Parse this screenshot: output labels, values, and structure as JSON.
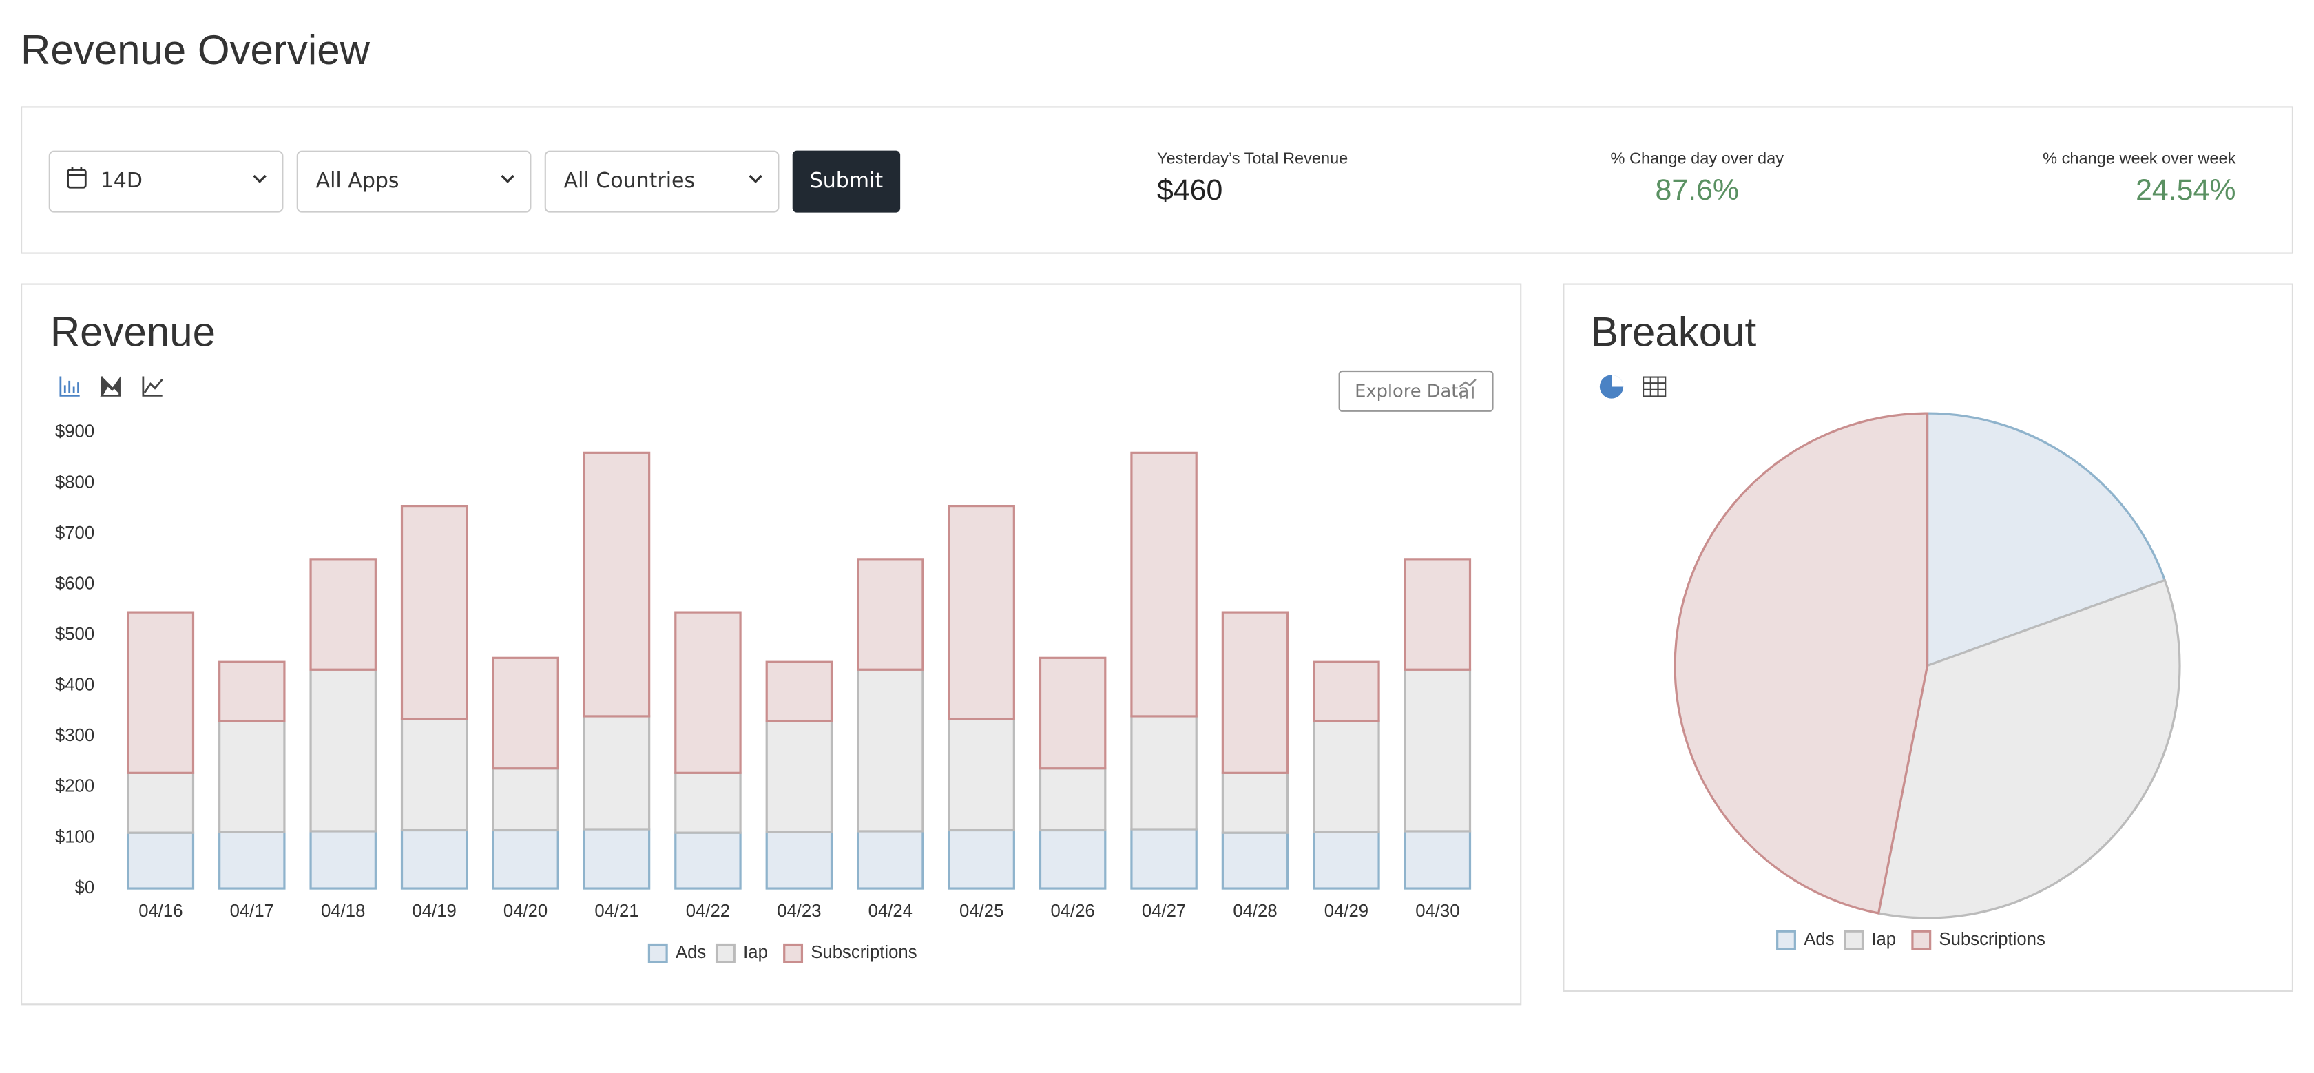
{
  "header": {
    "title": "Revenue Overview"
  },
  "filters": {
    "range": "14D",
    "apps": "All Apps",
    "countries": "All Countries",
    "submit": "Submit"
  },
  "stats": [
    {
      "label": "Yesterday’s Total Revenue",
      "value": "$460"
    },
    {
      "label": "% Change day over day",
      "value": "87.6%"
    },
    {
      "label": "% change week over week",
      "value": "24.54%"
    }
  ],
  "explore": "Explore Data",
  "chart_data": [
    {
      "type": "bar",
      "title": "Revenue",
      "categories": [
        "04/16",
        "04/17",
        "04/18",
        "04/19",
        "04/20",
        "04/21",
        "04/22",
        "04/23",
        "04/24",
        "04/25",
        "04/26",
        "04/27",
        "04/28",
        "04/29",
        "04/30"
      ],
      "series": [
        {
          "name": "Ads",
          "color": "#e3eaf2",
          "stroke": "#8fb3cc",
          "values": [
            110,
            112,
            113,
            115,
            115,
            117,
            110,
            112,
            113,
            115,
            115,
            117,
            110,
            112,
            113
          ]
        },
        {
          "name": "Iap",
          "color": "#ebebeb",
          "stroke": "#bbbbbb",
          "values": [
            118,
            218,
            319,
            220,
            122,
            223,
            118,
            218,
            319,
            220,
            122,
            223,
            118,
            218,
            319
          ]
        },
        {
          "name": "Subscriptions",
          "color": "#eddede",
          "stroke": "#c98e8e",
          "values": [
            317,
            117,
            218,
            420,
            218,
            520,
            317,
            117,
            218,
            420,
            218,
            520,
            317,
            117,
            218
          ]
        }
      ],
      "ylim": [
        0,
        900
      ],
      "yticks": [
        {
          "value": 0,
          "label": "$0"
        },
        {
          "value": 100,
          "label": "$100"
        },
        {
          "value": 200,
          "label": "$200"
        },
        {
          "value": 300,
          "label": "$300"
        },
        {
          "value": 400,
          "label": "$400"
        },
        {
          "value": 500,
          "label": "$500"
        },
        {
          "value": 600,
          "label": "$600"
        },
        {
          "value": 700,
          "label": "$700"
        },
        {
          "value": 800,
          "label": "$800"
        },
        {
          "value": 900,
          "label": "$900"
        }
      ],
      "stacked": true
    },
    {
      "type": "pie",
      "title": "Breakout",
      "categories": [
        "Ads",
        "Iap",
        "Subscriptions"
      ],
      "values": [
        19.5,
        33.6,
        46.9
      ],
      "colors": [
        "#e3eaf2",
        "#ebebeb",
        "#eddede"
      ],
      "strokes": [
        "#8fb3cc",
        "#bbbbbb",
        "#c98e8e"
      ]
    }
  ]
}
